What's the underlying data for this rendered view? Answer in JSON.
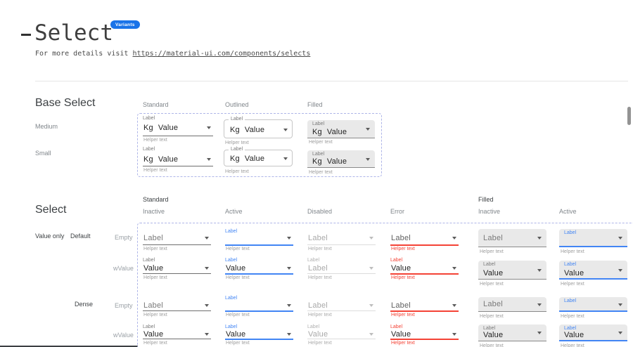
{
  "header": {
    "title": "Select",
    "badge": "Variants",
    "details_prefix": "For more details visit ",
    "details_url": "https://material-ui.com/components/selects"
  },
  "colors": {
    "accent_blue": "#4285F4",
    "badge_blue": "#1A73E8",
    "error_red": "#F44336",
    "filled_bg": "#E9E9E9",
    "dashed_border": "#AEB5E8"
  },
  "base_select": {
    "heading": "Base Select",
    "columns": [
      "Standard",
      "Outlined",
      "Filled"
    ],
    "rows": [
      "Medium",
      "Small"
    ],
    "field": {
      "label": "Label",
      "adornment": "Kg",
      "value": "Value",
      "helper": "Helper text"
    }
  },
  "select": {
    "heading": "Select",
    "groups": [
      {
        "label": "Standard",
        "variant": "standard",
        "states": [
          {
            "label": "Inactive",
            "key": "inactive"
          },
          {
            "label": "Active",
            "key": "active"
          },
          {
            "label": "Disabled",
            "key": "disabled"
          },
          {
            "label": "Error",
            "key": "error"
          }
        ]
      },
      {
        "label": "Filled",
        "variant": "filled",
        "states": [
          {
            "label": "Inactive",
            "key": "inactive"
          },
          {
            "label": "Active",
            "key": "active"
          }
        ]
      }
    ],
    "row_group_label": "Value only",
    "density_rows": [
      {
        "label": "Default",
        "key": "default",
        "states": [
          {
            "label": "Empty",
            "key": "empty"
          },
          {
            "label": "wValue",
            "key": "wvalue"
          }
        ]
      },
      {
        "label": "Dense",
        "key": "dense",
        "states": [
          {
            "label": "Empty",
            "key": "empty"
          },
          {
            "label": "wValue",
            "key": "wvalue"
          }
        ]
      }
    ],
    "field": {
      "label": "Label",
      "value": "Value",
      "helper": "Helper text"
    },
    "overrides": {
      "standard_disabled_default_wvalue_value": "Label"
    }
  }
}
